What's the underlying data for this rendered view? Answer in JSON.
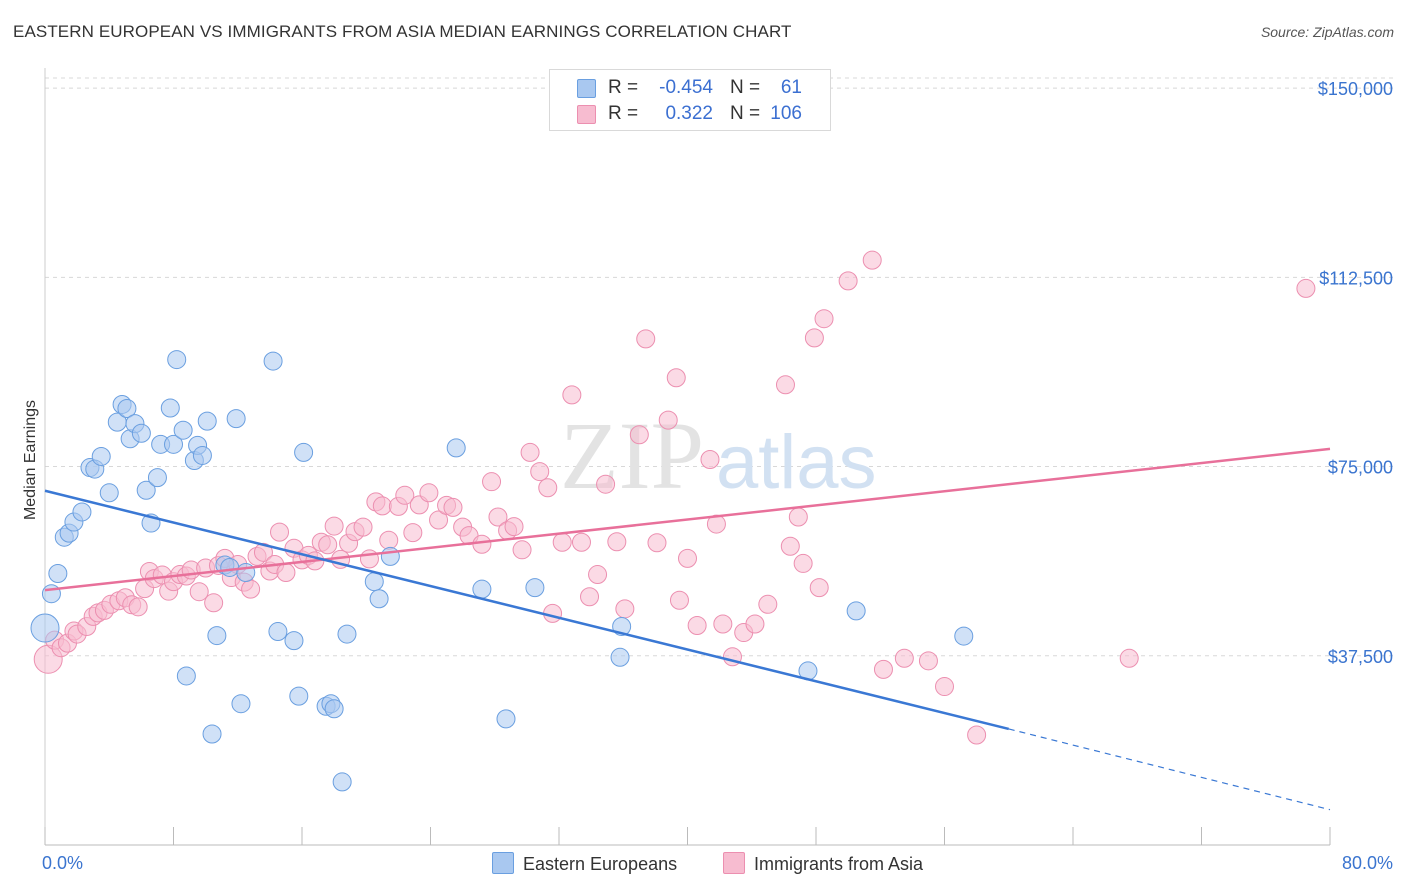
{
  "title": "EASTERN EUROPEAN VS IMMIGRANTS FROM ASIA MEDIAN EARNINGS CORRELATION CHART",
  "source": "Source: ZipAtlas.com",
  "watermark": {
    "zip": "ZIP",
    "atlas": "atlas"
  },
  "legend": {
    "rows": [
      {
        "r_label": "R =",
        "r_value": "-0.454",
        "n_label": "N =",
        "n_value": "61"
      },
      {
        "r_label": "R =",
        "r_value": "0.322",
        "n_label": "N =",
        "n_value": "106"
      }
    ]
  },
  "bottom_legend": {
    "blue_label": "Eastern Europeans",
    "pink_label": "Immigrants from Asia"
  },
  "colors": {
    "blue_fill": "#a9c8f0",
    "blue_stroke": "#6a9fe0",
    "blue_line": "#3a78d4",
    "pink_fill": "#f7bcd0",
    "pink_stroke": "#ec8fb0",
    "pink_line": "#e8709a",
    "tick_label": "#3a74cf",
    "grid": "#d8d8d8"
  },
  "chart_data": {
    "type": "scatter",
    "title": "EASTERN EUROPEAN VS IMMIGRANTS FROM ASIA MEDIAN EARNINGS CORRELATION CHART",
    "xlabel": "",
    "ylabel": "Median Earnings",
    "xlim": [
      0,
      80
    ],
    "ylim": [
      0,
      152000
    ],
    "x_tick_labels": [
      "0.0%",
      "80.0%"
    ],
    "y_ticks": [
      37500,
      75000,
      112500,
      150000
    ],
    "y_tick_labels": [
      "$37,500",
      "$75,000",
      "$112,500",
      "$150,000"
    ],
    "grid": true,
    "legend_position": "top-center",
    "series": [
      {
        "name": "Eastern Europeans",
        "color": "#a9c8f0",
        "trend": {
          "x0": 0,
          "y0": 70200,
          "x1": 60,
          "y1": 23000,
          "dashed_to_x": 80,
          "dashed_to_y": 7000
        },
        "points": [
          [
            0.0,
            43000
          ],
          [
            0.4,
            49800
          ],
          [
            0.8,
            53800
          ],
          [
            1.2,
            61000
          ],
          [
            1.5,
            61800
          ],
          [
            1.8,
            64000
          ],
          [
            2.3,
            66000
          ],
          [
            2.8,
            74800
          ],
          [
            3.1,
            74500
          ],
          [
            3.5,
            77000
          ],
          [
            4.0,
            69800
          ],
          [
            4.5,
            83800
          ],
          [
            4.8,
            87300
          ],
          [
            5.1,
            86500
          ],
          [
            5.3,
            80500
          ],
          [
            5.6,
            83500
          ],
          [
            6.0,
            81600
          ],
          [
            6.3,
            70300
          ],
          [
            6.6,
            63800
          ],
          [
            7.0,
            72800
          ],
          [
            7.2,
            79400
          ],
          [
            7.8,
            86600
          ],
          [
            8.0,
            79400
          ],
          [
            8.2,
            96200
          ],
          [
            8.6,
            82200
          ],
          [
            8.8,
            33500
          ],
          [
            9.3,
            76200
          ],
          [
            9.5,
            79200
          ],
          [
            9.8,
            77200
          ],
          [
            10.1,
            84000
          ],
          [
            10.4,
            22000
          ],
          [
            10.7,
            41500
          ],
          [
            11.2,
            55500
          ],
          [
            11.5,
            55000
          ],
          [
            11.9,
            84500
          ],
          [
            12.2,
            28000
          ],
          [
            12.5,
            54000
          ],
          [
            14.2,
            95900
          ],
          [
            14.5,
            42300
          ],
          [
            15.5,
            40500
          ],
          [
            15.8,
            29500
          ],
          [
            16.1,
            77800
          ],
          [
            17.5,
            27500
          ],
          [
            17.8,
            28000
          ],
          [
            18.0,
            27000
          ],
          [
            18.5,
            12500
          ],
          [
            18.8,
            41800
          ],
          [
            20.5,
            52200
          ],
          [
            20.8,
            48800
          ],
          [
            21.5,
            57200
          ],
          [
            25.6,
            78700
          ],
          [
            27.2,
            50700
          ],
          [
            28.7,
            25000
          ],
          [
            30.5,
            51000
          ],
          [
            35.8,
            37200
          ],
          [
            35.9,
            43300
          ],
          [
            47.5,
            34500
          ],
          [
            50.5,
            46400
          ],
          [
            57.2,
            41400
          ]
        ]
      },
      {
        "name": "Immigrants from Asia",
        "color": "#f7bcd0",
        "trend": {
          "x0": 0,
          "y0": 50500,
          "x1": 80,
          "y1": 78500
        },
        "points": [
          [
            0.2,
            36800
          ],
          [
            0.6,
            40600
          ],
          [
            1.0,
            39100
          ],
          [
            1.4,
            40000
          ],
          [
            1.8,
            42400
          ],
          [
            2.0,
            41800
          ],
          [
            2.6,
            43300
          ],
          [
            3.0,
            45300
          ],
          [
            3.3,
            46000
          ],
          [
            3.7,
            46500
          ],
          [
            4.1,
            47700
          ],
          [
            4.6,
            48400
          ],
          [
            5.0,
            49000
          ],
          [
            5.4,
            47600
          ],
          [
            5.8,
            47200
          ],
          [
            6.2,
            50800
          ],
          [
            6.5,
            54200
          ],
          [
            6.8,
            52800
          ],
          [
            7.3,
            53500
          ],
          [
            7.7,
            50300
          ],
          [
            8.0,
            52200
          ],
          [
            8.4,
            53600
          ],
          [
            8.8,
            53300
          ],
          [
            9.1,
            54500
          ],
          [
            9.6,
            50200
          ],
          [
            10.0,
            54900
          ],
          [
            10.5,
            48000
          ],
          [
            10.8,
            55400
          ],
          [
            11.2,
            56800
          ],
          [
            11.6,
            53000
          ],
          [
            12.0,
            55600
          ],
          [
            12.4,
            52100
          ],
          [
            12.8,
            50700
          ],
          [
            13.2,
            57200
          ],
          [
            13.6,
            58000
          ],
          [
            14.0,
            54300
          ],
          [
            14.3,
            55600
          ],
          [
            14.6,
            62000
          ],
          [
            15.0,
            54000
          ],
          [
            15.5,
            58800
          ],
          [
            16.0,
            56500
          ],
          [
            16.4,
            57400
          ],
          [
            16.8,
            56300
          ],
          [
            17.2,
            60000
          ],
          [
            17.6,
            59500
          ],
          [
            18.0,
            63200
          ],
          [
            18.4,
            56600
          ],
          [
            18.9,
            59800
          ],
          [
            19.3,
            62100
          ],
          [
            19.8,
            63000
          ],
          [
            20.2,
            56700
          ],
          [
            20.6,
            68000
          ],
          [
            21.0,
            67200
          ],
          [
            21.4,
            60400
          ],
          [
            22.0,
            67100
          ],
          [
            22.4,
            69300
          ],
          [
            22.9,
            61900
          ],
          [
            23.3,
            67400
          ],
          [
            23.9,
            69800
          ],
          [
            24.5,
            64400
          ],
          [
            25.0,
            67300
          ],
          [
            25.4,
            66900
          ],
          [
            26.0,
            63000
          ],
          [
            26.4,
            61300
          ],
          [
            27.2,
            59600
          ],
          [
            27.8,
            72000
          ],
          [
            28.2,
            65000
          ],
          [
            28.8,
            62300
          ],
          [
            29.2,
            63100
          ],
          [
            29.7,
            58500
          ],
          [
            30.2,
            77800
          ],
          [
            30.8,
            74000
          ],
          [
            31.3,
            70800
          ],
          [
            31.6,
            45900
          ],
          [
            32.2,
            60000
          ],
          [
            32.8,
            89200
          ],
          [
            33.4,
            60000
          ],
          [
            33.9,
            49200
          ],
          [
            34.4,
            53600
          ],
          [
            34.9,
            71500
          ],
          [
            35.6,
            60100
          ],
          [
            36.1,
            46800
          ],
          [
            37.0,
            81300
          ],
          [
            37.4,
            100300
          ],
          [
            38.1,
            59900
          ],
          [
            38.8,
            84200
          ],
          [
            39.3,
            92600
          ],
          [
            39.5,
            48500
          ],
          [
            40.0,
            56800
          ],
          [
            40.6,
            43500
          ],
          [
            41.4,
            76400
          ],
          [
            41.8,
            63600
          ],
          [
            42.2,
            43800
          ],
          [
            42.8,
            37300
          ],
          [
            43.5,
            42100
          ],
          [
            44.2,
            43800
          ],
          [
            45.0,
            47700
          ],
          [
            46.1,
            91200
          ],
          [
            46.4,
            59200
          ],
          [
            46.9,
            65000
          ],
          [
            47.2,
            55800
          ],
          [
            47.9,
            100500
          ],
          [
            48.2,
            51000
          ],
          [
            48.5,
            104300
          ],
          [
            50.0,
            111800
          ],
          [
            51.5,
            115900
          ],
          [
            52.2,
            34800
          ],
          [
            53.5,
            37000
          ],
          [
            55.0,
            36500
          ],
          [
            56.0,
            31400
          ],
          [
            58.0,
            21800
          ],
          [
            67.5,
            37000
          ],
          [
            78.5,
            110300
          ]
        ]
      }
    ]
  }
}
